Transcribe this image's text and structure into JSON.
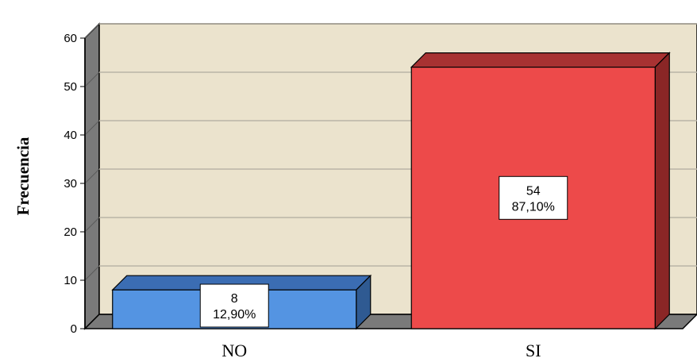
{
  "chart_data": {
    "type": "bar",
    "ylabel": "Frecuencia",
    "xlabel": "",
    "categories": [
      "NO",
      "SI"
    ],
    "values": [
      8,
      54
    ],
    "percents": [
      "12,90%",
      "87,10%"
    ],
    "ylim": [
      0,
      60
    ],
    "yticks": [
      "0",
      "10",
      "20",
      "30",
      "40",
      "50",
      "60"
    ],
    "grid": true,
    "legend": "none",
    "style": "3d",
    "colors": {
      "plot_back": "#ebe3cd",
      "plot_side": "#7a7a7a",
      "plot_floor": "#7a7a7a",
      "grid": "#b9b4a6",
      "bars": [
        {
          "front": "#5494e2",
          "top": "#3b6db3",
          "side": "#2f5a92"
        },
        {
          "front": "#ed4a4a",
          "top": "#a83232",
          "side": "#8a2626"
        }
      ]
    }
  }
}
